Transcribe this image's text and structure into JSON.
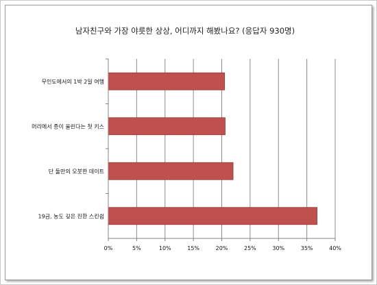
{
  "chart_data": {
    "type": "bar",
    "orientation": "horizontal",
    "title": "남자친구와 가장 야릇한 상상, 어디까지 해봤나요? (응답자 930명)",
    "categories": [
      "무인도에서의 1박 2일 여행",
      "머리에서 종이 울린다는 첫 키스",
      "단 둘만의 오붓한 데이트",
      "19금, 농도 깊은 진한 스킨쉽"
    ],
    "values": [
      20.5,
      20.6,
      22.0,
      36.8
    ],
    "xlim": [
      0,
      40
    ],
    "x_ticks": [
      "0%",
      "5%",
      "10%",
      "15%",
      "20%",
      "25%",
      "30%",
      "35%",
      "40%"
    ],
    "xlabel": "",
    "ylabel": "",
    "grid": "vertical",
    "legend": "none",
    "bar_color": "#c0504d",
    "bar_edge_color": "#943634"
  }
}
